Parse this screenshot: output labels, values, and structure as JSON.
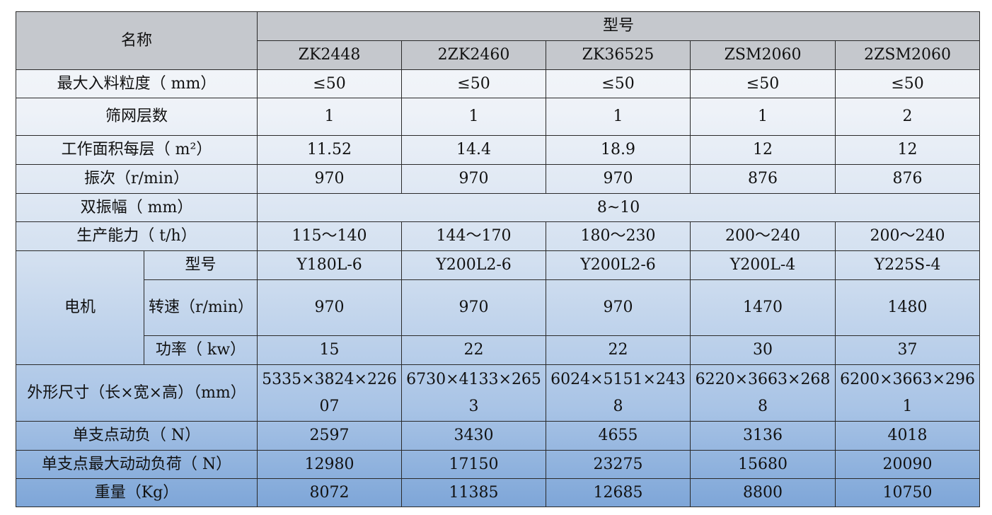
{
  "header": {
    "name": "名称",
    "model": "型号",
    "models": [
      "ZK2448",
      "2ZK2460",
      "ZK36525",
      "ZSM2060",
      "2ZSM2060"
    ]
  },
  "rows": [
    {
      "label": "最大入料粒度（ mm）",
      "values": [
        "≤50",
        "≤50",
        "≤50",
        "≤50",
        "≤50"
      ]
    },
    {
      "label": "筛网层数",
      "values": [
        "1",
        "1",
        "1",
        "1",
        "2"
      ]
    },
    {
      "label": "工作面积每层（ m²）",
      "values": [
        "11.52",
        "14.4",
        "18.9",
        "12",
        "12"
      ]
    },
    {
      "label": "振次（r/min）",
      "values": [
        "970",
        "970",
        "970",
        "876",
        "876"
      ]
    },
    {
      "label": "双振幅（ mm）",
      "values": [
        "8~10"
      ]
    },
    {
      "label": "生产能力（ t/h）",
      "values": [
        "115～140",
        "144～170",
        "180～230",
        "200～240",
        "200～240"
      ]
    },
    {
      "label": "电机",
      "subrows": [
        {
          "label": "型号",
          "values": [
            "Y180L-6",
            "Y200L2-6",
            "Y200L2-6",
            "Y200L-4",
            "Y225S-4"
          ]
        },
        {
          "label": "转速（r/min）",
          "values": [
            "970",
            "970",
            "970",
            "1470",
            "1480"
          ]
        },
        {
          "label": "功率（ kw）",
          "values": [
            "15",
            "22",
            "22",
            "30",
            "37"
          ]
        }
      ]
    },
    {
      "label": "外形尺寸（长×宽×高）（mm）",
      "values": [
        "5335×3824×22607",
        "6730×4133×2653",
        "6024×5151×2438",
        "6220×3663×2688",
        "6200×3663×2961"
      ]
    },
    {
      "label": "单支点动负（ N）",
      "values": [
        "2597",
        "3430",
        "4655",
        "3136",
        "4018"
      ]
    },
    {
      "label": "单支点最大动动负荷（ N）",
      "values": [
        "12980",
        "17150",
        "23275",
        "15680",
        "20090"
      ]
    },
    {
      "label": "重量（Kg）",
      "values": [
        "8072",
        "11385",
        "12685",
        "8800",
        "10750"
      ]
    }
  ]
}
